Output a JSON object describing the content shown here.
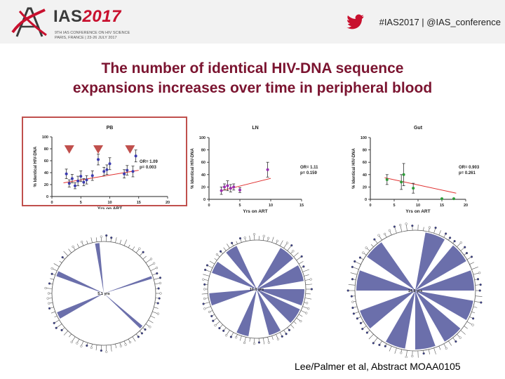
{
  "header": {
    "logo_main": "IAS",
    "logo_year": "2017",
    "logo_line1": "9TH IAS CONFERENCE ON HIV SCIENCE",
    "logo_line2": "PARIS, FRANCE | 23-26 JULY 2017",
    "hashtag": "#IAS2017 | @IAS_conference"
  },
  "title_line1": "The number of identical HIV-DNA sequence",
  "title_line2": "expansions increases over time in peripheral blood",
  "colors": {
    "title": "#7b1430",
    "pb_box": "#c0504d",
    "trend": "#e03030",
    "pb_points": "#3b3bb0",
    "ln_points": "#9b30b0",
    "gut_points": "#2e9b3a",
    "tree": "#3a3f8f"
  },
  "chart_data": [
    {
      "type": "scatter",
      "title": "PB",
      "xlabel": "Yrs on ART",
      "ylabel": "% Identical HIV-DNA",
      "xlim": [
        0,
        20
      ],
      "ylim": [
        0,
        100
      ],
      "xticks": [
        "0",
        "5",
        "10",
        "15",
        "20"
      ],
      "yticks": [
        "0",
        "20",
        "40",
        "60",
        "80",
        "100"
      ],
      "stats": [
        "OR= 1.09",
        "p= 0.003"
      ],
      "markers_x": [
        3,
        8,
        13.5
      ],
      "points": [
        {
          "x": 2.5,
          "y": 38,
          "err": 8
        },
        {
          "x": 3,
          "y": 22,
          "err": 6
        },
        {
          "x": 3.5,
          "y": 30,
          "err": 7
        },
        {
          "x": 4,
          "y": 18,
          "err": 5
        },
        {
          "x": 4.5,
          "y": 26,
          "err": 8
        },
        {
          "x": 5,
          "y": 34,
          "err": 9
        },
        {
          "x": 5.5,
          "y": 24,
          "err": 6
        },
        {
          "x": 6,
          "y": 28,
          "err": 7
        },
        {
          "x": 7,
          "y": 35,
          "err": 8
        },
        {
          "x": 8,
          "y": 62,
          "err": 9
        },
        {
          "x": 9,
          "y": 42,
          "err": 7
        },
        {
          "x": 9.5,
          "y": 45,
          "err": 8
        },
        {
          "x": 10,
          "y": 55,
          "err": 10
        },
        {
          "x": 12.5,
          "y": 38,
          "err": 7
        },
        {
          "x": 13,
          "y": 44,
          "err": 8
        },
        {
          "x": 14,
          "y": 42,
          "err": 9
        },
        {
          "x": 14.5,
          "y": 68,
          "err": 10
        }
      ],
      "trend": [
        [
          2,
          23
        ],
        [
          15,
          44
        ]
      ]
    },
    {
      "type": "scatter",
      "title": "LN",
      "xlabel": "Yrs on ART",
      "ylabel": "% Identical HIV-DNA",
      "xlim": [
        0,
        15
      ],
      "ylim": [
        0,
        100
      ],
      "xticks": [
        "0",
        "5",
        "10",
        "15"
      ],
      "yticks": [
        "0",
        "20",
        "40",
        "60",
        "80",
        "100"
      ],
      "stats": [
        "OR= 1.11",
        "p= 0.159"
      ],
      "points": [
        {
          "x": 2,
          "y": 14,
          "err": 6
        },
        {
          "x": 2.5,
          "y": 20,
          "err": 5
        },
        {
          "x": 3,
          "y": 22,
          "err": 8
        },
        {
          "x": 3.5,
          "y": 18,
          "err": 6
        },
        {
          "x": 4,
          "y": 20,
          "err": 5
        },
        {
          "x": 5,
          "y": 15,
          "err": 4
        },
        {
          "x": 9.5,
          "y": 48,
          "err": 12
        }
      ],
      "trend": [
        [
          2,
          14
        ],
        [
          10,
          34
        ]
      ]
    },
    {
      "type": "scatter",
      "title": "Gut",
      "xlabel": "Yrs on ART",
      "ylabel": "% Identical HIV-DNA",
      "xlim": [
        0,
        20
      ],
      "ylim": [
        0,
        100
      ],
      "xticks": [
        "0",
        "5",
        "10",
        "15",
        "20"
      ],
      "yticks": [
        "0",
        "20",
        "40",
        "60",
        "80",
        "100"
      ],
      "stats": [
        "OR= 0.903",
        "p= 0.261"
      ],
      "points": [
        {
          "x": 3.5,
          "y": 32,
          "err": 8
        },
        {
          "x": 6.5,
          "y": 28,
          "err": 12
        },
        {
          "x": 7,
          "y": 40,
          "err": 18
        },
        {
          "x": 9,
          "y": 18,
          "err": 8
        },
        {
          "x": 15,
          "y": 1,
          "err": 0
        },
        {
          "x": 17.5,
          "y": 1,
          "err": 0
        }
      ],
      "trend": [
        [
          3,
          35
        ],
        [
          18,
          10
        ]
      ]
    }
  ],
  "trees": [
    {
      "label": "5.1 yrs"
    },
    {
      "label": "10.0 yrs"
    },
    {
      "label": "14.9 yrs"
    }
  ],
  "footer": "Lee/Palmer et al, Abstract MOAA0105"
}
